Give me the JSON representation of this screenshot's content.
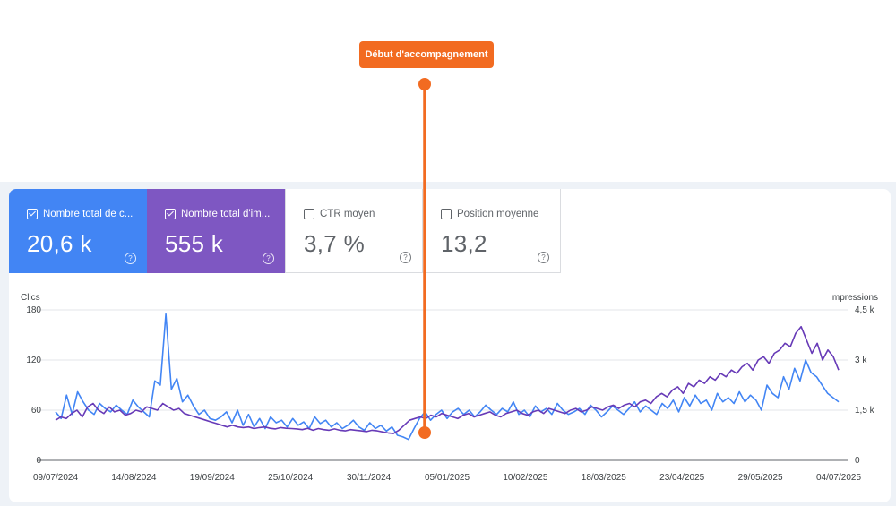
{
  "annotation": {
    "label": "Début d'accompagnement",
    "color": "#f26b21"
  },
  "metrics": [
    {
      "label": "Nombre total de c...",
      "value": "20,6 k",
      "checked": true,
      "color": "#4285f4"
    },
    {
      "label": "Nombre total d'im...",
      "value": "555 k",
      "checked": true,
      "color": "#7e57c2"
    },
    {
      "label": "CTR moyen",
      "value": "3,7 %",
      "checked": false
    },
    {
      "label": "Position moyenne",
      "value": "13,2",
      "checked": false
    }
  ],
  "chart_data": {
    "type": "line",
    "left_axis_label": "Clics",
    "right_axis_label": "Impressions",
    "left_ticks": [
      "0",
      "60",
      "120",
      "180"
    ],
    "right_ticks": [
      "0",
      "1,5 k",
      "3 k",
      "4,5 k"
    ],
    "ylim_left": [
      0,
      180
    ],
    "ylim_right": [
      0,
      4500
    ],
    "x_labels": [
      "09/07/2024",
      "14/08/2024",
      "19/09/2024",
      "25/10/2024",
      "30/11/2024",
      "05/01/2025",
      "10/02/2025",
      "18/03/2025",
      "23/04/2025",
      "29/05/2025",
      "04/07/2025"
    ],
    "grid": true,
    "series": [
      {
        "name": "Clics",
        "axis": "left",
        "color": "#4285f4",
        "values": [
          58,
          50,
          78,
          55,
          82,
          70,
          60,
          55,
          68,
          62,
          58,
          66,
          60,
          55,
          72,
          64,
          58,
          52,
          95,
          90,
          175,
          85,
          98,
          70,
          78,
          65,
          55,
          60,
          50,
          48,
          52,
          58,
          45,
          60,
          42,
          55,
          40,
          50,
          38,
          52,
          45,
          48,
          40,
          50,
          42,
          46,
          38,
          52,
          44,
          48,
          40,
          45,
          38,
          42,
          48,
          40,
          36,
          45,
          38,
          42,
          35,
          40,
          30,
          28,
          25,
          38,
          50,
          58,
          48,
          55,
          60,
          50,
          58,
          62,
          55,
          60,
          52,
          58,
          66,
          60,
          55,
          62,
          58,
          70,
          55,
          60,
          52,
          65,
          58,
          62,
          55,
          68,
          60,
          55,
          58,
          62,
          55,
          66,
          60,
          52,
          58,
          65,
          60,
          55,
          62,
          70,
          58,
          65,
          60,
          55,
          68,
          62,
          72,
          58,
          75,
          65,
          78,
          68,
          72,
          60,
          80,
          70,
          75,
          68,
          82,
          70,
          78,
          72,
          60,
          90,
          80,
          75,
          100,
          85,
          110,
          95,
          120,
          105,
          100,
          90,
          80,
          75,
          70
        ]
      },
      {
        "name": "Impressions",
        "axis": "right",
        "color": "#673ab7",
        "values": [
          1200,
          1300,
          1250,
          1400,
          1500,
          1300,
          1600,
          1700,
          1500,
          1400,
          1600,
          1450,
          1500,
          1350,
          1400,
          1500,
          1450,
          1600,
          1550,
          1500,
          1700,
          1600,
          1500,
          1550,
          1400,
          1350,
          1300,
          1250,
          1200,
          1150,
          1100,
          1050,
          1000,
          1050,
          1000,
          980,
          1000,
          950,
          980,
          1000,
          960,
          940,
          980,
          960,
          950,
          940,
          920,
          960,
          900,
          950,
          920,
          900,
          940,
          900,
          880,
          920,
          900,
          880,
          860,
          900,
          880,
          850,
          820,
          800,
          900,
          1050,
          1200,
          1250,
          1300,
          1250,
          1350,
          1300,
          1400,
          1350,
          1300,
          1250,
          1350,
          1400,
          1300,
          1350,
          1400,
          1450,
          1350,
          1300,
          1400,
          1450,
          1500,
          1400,
          1350,
          1450,
          1500,
          1400,
          1550,
          1500,
          1450,
          1400,
          1500,
          1550,
          1450,
          1500,
          1600,
          1550,
          1500,
          1600,
          1650,
          1550,
          1650,
          1700,
          1600,
          1750,
          1800,
          1700,
          1900,
          2000,
          1900,
          2100,
          2200,
          2000,
          2300,
          2200,
          2400,
          2300,
          2500,
          2400,
          2600,
          2500,
          2700,
          2600,
          2800,
          2900,
          2700,
          3000,
          3100,
          2900,
          3200,
          3300,
          3500,
          3400,
          3800,
          4000,
          3600,
          3200,
          3500,
          3000,
          3300,
          3100,
          2700
        ]
      }
    ]
  }
}
